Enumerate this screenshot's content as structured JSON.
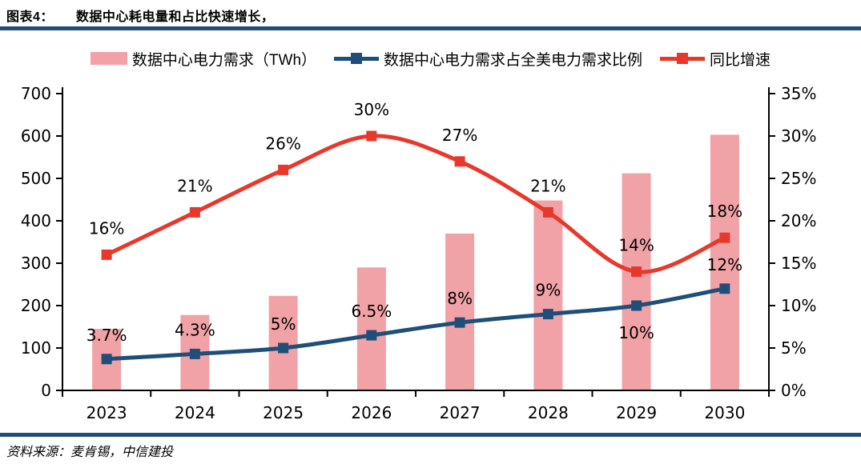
{
  "figure": {
    "label": "图表4：",
    "title": "数据中心耗电量和占比快速增长，",
    "source": "资料来源：麦肯锡，中信建投"
  },
  "colors": {
    "rule": "#1F4E79",
    "axis": "#000000",
    "bar": "#F1A2A7",
    "share_line": "#1F4E79",
    "growth_line": "#E7382B",
    "label_text": "#000000"
  },
  "legend": [
    {
      "label": "数据中心电力需求（TWh）",
      "swatch": "bar"
    },
    {
      "label": "数据中心电力需求占全美电力需求比例",
      "swatch": "line-square-blue"
    },
    {
      "label": "同比增速",
      "swatch": "line-square-red"
    }
  ],
  "chart_data": {
    "type": "combo-bar-line",
    "title": "数据中心耗电量和占比快速增长",
    "categories": [
      "2023",
      "2024",
      "2025",
      "2026",
      "2027",
      "2028",
      "2029",
      "2030"
    ],
    "series": [
      {
        "name": "数据中心电力需求（TWh）",
        "kind": "bar",
        "axis": "left",
        "color": "#F1A2A7",
        "values": [
          145,
          178,
          223,
          290,
          370,
          448,
          512,
          603
        ]
      },
      {
        "name": "数据中心电力需求占全美电力需求比例",
        "kind": "line",
        "axis": "right",
        "color": "#1F4E79",
        "marker": "square",
        "values": [
          3.7,
          4.3,
          5,
          6.5,
          8,
          9,
          10,
          12
        ],
        "labels": [
          "3.7%",
          "4.3%",
          "5%",
          "6.5%",
          "8%",
          "9%",
          "10%",
          "12%"
        ],
        "label_side": [
          "above",
          "above",
          "above",
          "above",
          "above",
          "above",
          "below",
          "above"
        ]
      },
      {
        "name": "同比增速",
        "kind": "line",
        "axis": "right",
        "color": "#E7382B",
        "marker": "square",
        "values": [
          16,
          21,
          26,
          30,
          27,
          21,
          14,
          18
        ],
        "labels": [
          "16%",
          "21%",
          "26%",
          "30%",
          "27%",
          "21%",
          "14%",
          "18%"
        ],
        "label_side": [
          "above",
          "above",
          "above",
          "above",
          "above",
          "above",
          "above",
          "above"
        ]
      }
    ],
    "left_axis": {
      "min": 0,
      "max": 700,
      "step": 100
    },
    "right_axis": {
      "min": 0,
      "max": 35,
      "step": 5,
      "suffix": "%"
    },
    "legend_position": "top",
    "grid": false
  }
}
